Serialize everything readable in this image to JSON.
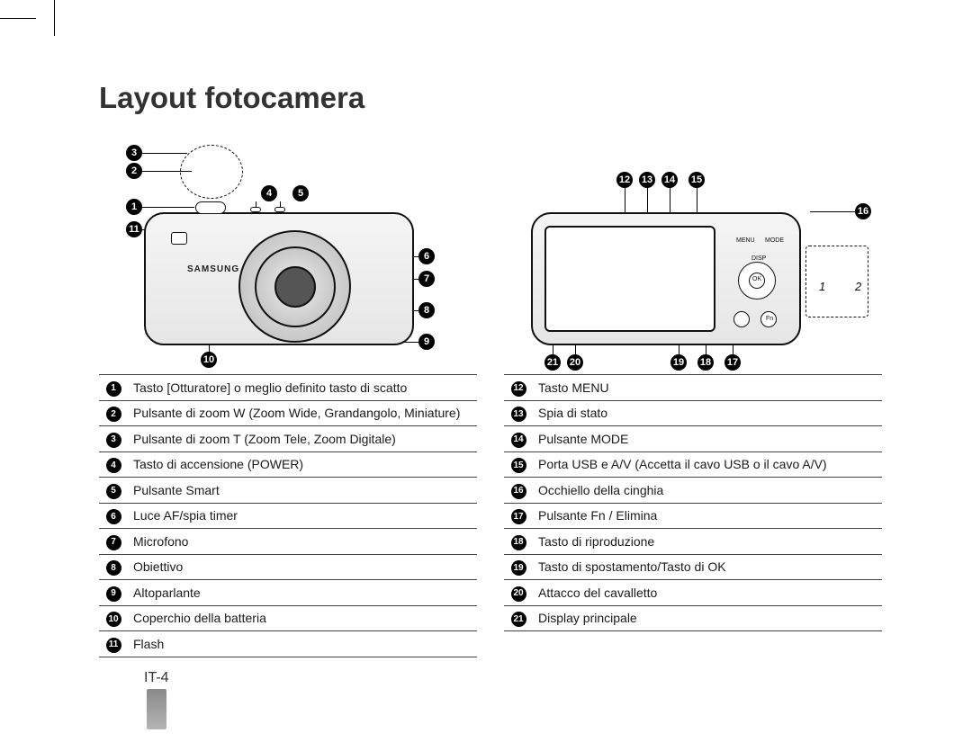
{
  "title": "Layout fotocamera",
  "page_number": "IT-4",
  "brand_text": "SAMSUNG",
  "colors": {
    "text": "#1a1a1a",
    "rule": "#444444",
    "ball_bg": "#000000",
    "ball_fg": "#ffffff",
    "page_bg": "#ffffff"
  },
  "front_view": {
    "callouts": [
      {
        "n": 1,
        "desc": "Tasto [Otturatore] o meglio definito tasto di scatto"
      },
      {
        "n": 2,
        "desc": "Pulsante di zoom W (Zoom Wide, Grandangolo, Miniature)",
        "small": true
      },
      {
        "n": 3,
        "desc": "Pulsante di zoom T (Zoom Tele, Zoom Digitale)"
      },
      {
        "n": 4,
        "desc": "Tasto di accensione (POWER)"
      },
      {
        "n": 5,
        "desc": "Pulsante Smart"
      },
      {
        "n": 6,
        "desc": "Luce AF/spia timer"
      },
      {
        "n": 7,
        "desc": "Microfono"
      },
      {
        "n": 8,
        "desc": "Obiettivo"
      },
      {
        "n": 9,
        "desc": "Altoparlante"
      },
      {
        "n": 10,
        "desc": "Coperchio della batteria"
      },
      {
        "n": 11,
        "desc": "Flash"
      }
    ]
  },
  "rear_view": {
    "callouts": [
      {
        "n": 12,
        "desc": "Tasto MENU"
      },
      {
        "n": 13,
        "desc": "Spia di stato"
      },
      {
        "n": 14,
        "desc": "Pulsante MODE"
      },
      {
        "n": 15,
        "desc": "Porta USB e A/V (Accetta il cavo USB o il cavo A/V)"
      },
      {
        "n": 16,
        "desc": "Occhiello della cinghia"
      },
      {
        "n": 17,
        "desc": "Pulsante Fn / Elimina"
      },
      {
        "n": 18,
        "desc": "Tasto di riproduzione"
      },
      {
        "n": 19,
        "desc": "Tasto di spostamento/Tasto di OK"
      },
      {
        "n": 20,
        "desc": "Attacco del cavalletto"
      },
      {
        "n": 21,
        "desc": "Display principale"
      }
    ],
    "rear_labels": {
      "menu": "MENU",
      "mode": "MODE",
      "ok": "OK",
      "disp": "DISP",
      "fn": "Fn"
    },
    "detail_numbers": {
      "a": "1",
      "b": "2"
    }
  }
}
